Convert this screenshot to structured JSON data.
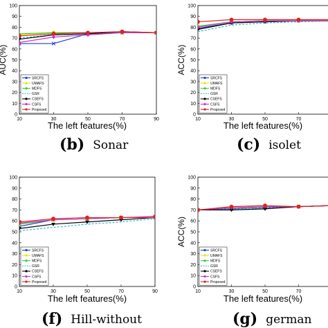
{
  "chart_data": [
    {
      "type": "line",
      "panel_letter": "(b)",
      "panel_name": "Sonar",
      "xlabel": "The left features(%)",
      "ylabel": "AUC(%)",
      "x": [
        10,
        30,
        50,
        70,
        90
      ],
      "xticks": [
        "10",
        "30",
        "50",
        "70",
        "90"
      ],
      "ylim": [
        0,
        100
      ],
      "yticks": [
        "0",
        "10",
        "20",
        "30",
        "40",
        "50",
        "60",
        "70",
        "80",
        "90",
        "100"
      ],
      "series": [
        {
          "name": "SRCFS",
          "color": "#1f3fcc",
          "values": [
            65,
            65,
            74,
            75,
            75
          ]
        },
        {
          "name": "UMAFS",
          "color": "#e6e600",
          "values": [
            73,
            75,
            75,
            75,
            75
          ]
        },
        {
          "name": "MDFS",
          "color": "#33cc33",
          "values": [
            74,
            75,
            75,
            75,
            75
          ]
        },
        {
          "name": "GSR",
          "color": "#33bbcc",
          "values": [
            70,
            73,
            74,
            75,
            75
          ]
        },
        {
          "name": "CSEFS",
          "color": "#000000",
          "values": [
            69,
            73,
            74,
            76,
            75
          ]
        },
        {
          "name": "CSFS",
          "color": "#cc33cc",
          "values": [
            66,
            71,
            73,
            75,
            75
          ]
        },
        {
          "name": "Proposed",
          "color": "#dd2222",
          "values": [
            72,
            74,
            75,
            76,
            75
          ]
        }
      ]
    },
    {
      "type": "line",
      "panel_letter": "(c)",
      "panel_name": "isolet",
      "xlabel": "The left features(%)",
      "ylabel": "ACC(%)",
      "x": [
        10,
        30,
        50,
        70,
        90
      ],
      "xticks": [
        "10",
        "30",
        "50",
        "70"
      ],
      "ylim": [
        0,
        100
      ],
      "yticks": [
        "0",
        "10",
        "20",
        "30",
        "40",
        "50",
        "60",
        "70",
        "80",
        "90",
        "100"
      ],
      "series": [
        {
          "name": "SRCFS",
          "color": "#1f3fcc",
          "values": [
            79,
            84,
            85,
            86,
            86
          ]
        },
        {
          "name": "UMAFS",
          "color": "#e6e600",
          "values": [
            81,
            85,
            86,
            86,
            86
          ]
        },
        {
          "name": "MDFS",
          "color": "#33cc33",
          "values": [
            81,
            85,
            86,
            86,
            86
          ]
        },
        {
          "name": "GSR",
          "color": "#33bbcc",
          "values": [
            76,
            82,
            84,
            85,
            86
          ]
        },
        {
          "name": "CSEFS",
          "color": "#000000",
          "values": [
            78,
            84,
            85,
            86,
            86
          ]
        },
        {
          "name": "CSFS",
          "color": "#cc33cc",
          "values": [
            80,
            85,
            86,
            86,
            86
          ]
        },
        {
          "name": "Proposed",
          "color": "#dd2222",
          "values": [
            85,
            87,
            87,
            87,
            87
          ]
        }
      ]
    },
    {
      "type": "line",
      "panel_letter": "(f)",
      "panel_name": "Hill-without",
      "xlabel": "The left features(%)",
      "ylabel": "",
      "x": [
        10,
        30,
        50,
        70,
        90
      ],
      "xticks": [
        "10",
        "30",
        "50",
        "70",
        "90"
      ],
      "ylim": [
        0,
        100
      ],
      "yticks": [
        "0",
        "10",
        "20",
        "30",
        "40",
        "50",
        "60",
        "70",
        "80",
        "90",
        "100"
      ],
      "series": [
        {
          "name": "SRCFS",
          "color": "#1f3fcc",
          "values": [
            55,
            61,
            62,
            63,
            63
          ]
        },
        {
          "name": "UMAFS",
          "color": "#e6e600",
          "values": [
            57,
            61,
            62,
            63,
            63
          ]
        },
        {
          "name": "MDFS",
          "color": "#33cc33",
          "values": [
            57,
            61,
            62,
            63,
            63
          ]
        },
        {
          "name": "GSR",
          "color": "#33bbcc",
          "values": [
            51,
            54,
            57,
            59,
            62
          ]
        },
        {
          "name": "CSEFS",
          "color": "#000000",
          "values": [
            53,
            57,
            59,
            61,
            63
          ]
        },
        {
          "name": "CSFS",
          "color": "#cc33cc",
          "values": [
            58,
            61,
            62,
            63,
            63
          ]
        },
        {
          "name": "Proposed",
          "color": "#dd2222",
          "values": [
            59,
            62,
            63,
            63,
            64
          ]
        }
      ]
    },
    {
      "type": "line",
      "panel_letter": "(g)",
      "panel_name": "german",
      "xlabel": "The left features(%)",
      "ylabel": "ACC(%)",
      "x": [
        10,
        30,
        50,
        70,
        90
      ],
      "xticks": [
        "10",
        "30",
        "50",
        "70"
      ],
      "ylim": [
        0,
        100
      ],
      "yticks": [
        "0",
        "10",
        "20",
        "30",
        "40",
        "50",
        "60",
        "70",
        "80",
        "90",
        "100"
      ],
      "series": [
        {
          "name": "SRCFS",
          "color": "#1f3fcc",
          "values": [
            70,
            71,
            72,
            73,
            74
          ]
        },
        {
          "name": "UMAFS",
          "color": "#e6e600",
          "values": [
            70,
            72,
            73,
            73,
            74
          ]
        },
        {
          "name": "MDFS",
          "color": "#33cc33",
          "values": [
            70,
            72,
            73,
            73,
            74
          ]
        },
        {
          "name": "GSR",
          "color": "#33bbcc",
          "values": [
            70,
            71,
            72,
            73,
            74
          ]
        },
        {
          "name": "CSEFS",
          "color": "#000000",
          "values": [
            70,
            70,
            71,
            73,
            74
          ]
        },
        {
          "name": "CSFS",
          "color": "#cc33cc",
          "values": [
            70,
            72,
            73,
            73,
            74
          ]
        },
        {
          "name": "Proposed",
          "color": "#dd2222",
          "values": [
            70,
            73,
            74,
            73,
            74
          ]
        }
      ]
    }
  ],
  "markers": {
    "SRCFS": "x",
    "UMAFS": "circle",
    "MDFS": "triangle-up",
    "GSR": "none",
    "CSEFS": "triangle-down",
    "CSFS": "diamond",
    "Proposed": "circle"
  }
}
